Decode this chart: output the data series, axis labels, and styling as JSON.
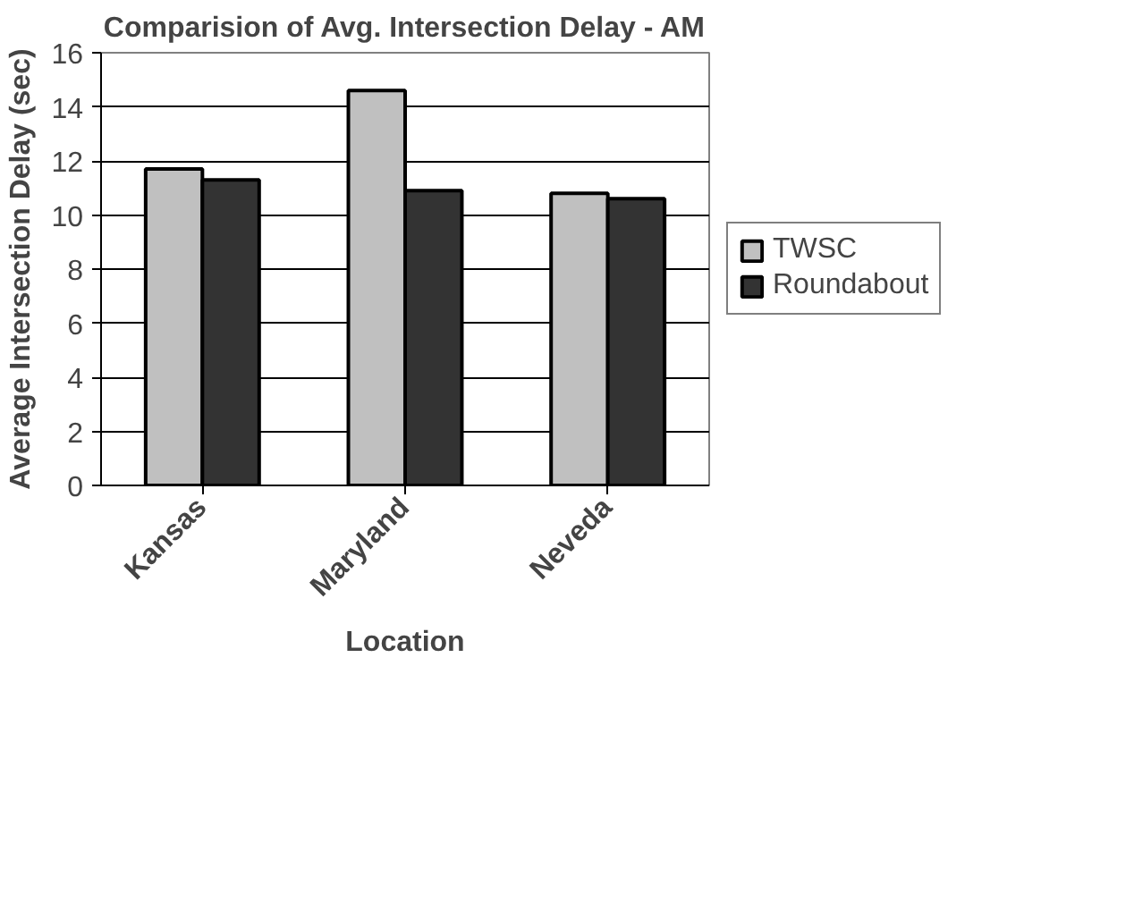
{
  "chart_data": {
    "type": "bar",
    "title": "Comparision of Avg. Intersection Delay - AM",
    "xlabel": "Location",
    "ylabel": "Average Intersection Delay (sec)",
    "categories": [
      "Kansas",
      "Maryland",
      "Neveda"
    ],
    "series": [
      {
        "name": "TWSC",
        "color": "#c0c0c0",
        "values": [
          11.7,
          14.6,
          10.8
        ]
      },
      {
        "name": "Roundabout",
        "color": "#333333",
        "values": [
          11.3,
          10.9,
          10.6
        ]
      }
    ],
    "ylim": [
      0,
      16
    ],
    "yticks": [
      0,
      2,
      4,
      6,
      8,
      10,
      12,
      14,
      16
    ],
    "grid": "y",
    "legend": "right"
  }
}
